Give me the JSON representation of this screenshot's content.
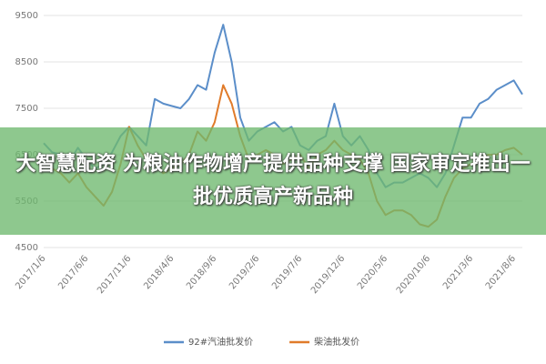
{
  "chart_data": {
    "type": "line",
    "categories": [
      "2017/1/6",
      null,
      null,
      null,
      null,
      "2017/6/6",
      null,
      null,
      null,
      null,
      "2017/11/6",
      null,
      null,
      null,
      null,
      "2018/4/6",
      null,
      null,
      null,
      null,
      "2018/9/6",
      null,
      null,
      null,
      null,
      "2019/2/6",
      null,
      null,
      null,
      null,
      "2019/7/6",
      null,
      null,
      null,
      null,
      "2019/12/6",
      null,
      null,
      null,
      null,
      "2020/5/6",
      null,
      null,
      null,
      null,
      "2020/10/6",
      null,
      null,
      null,
      null,
      "2021/3/6",
      null,
      null,
      null,
      null,
      "2021/8/6",
      null
    ],
    "series": [
      {
        "name": "92#汽油批发价",
        "color": "#5b8ec9",
        "values": [
          6750,
          6550,
          6500,
          6350,
          6650,
          6400,
          6200,
          6300,
          6550,
          6900,
          7100,
          6900,
          6700,
          7700,
          7600,
          7550,
          7500,
          7700,
          8000,
          7900,
          8700,
          9300,
          8500,
          7300,
          6800,
          7000,
          7100,
          7200,
          7000,
          7100,
          6700,
          6600,
          6800,
          6900,
          7600,
          6900,
          6700,
          6900,
          6600,
          6100,
          5800,
          5900,
          5900,
          6000,
          6100,
          6000,
          5800,
          6100,
          6700,
          7300,
          7300,
          7600,
          7700,
          7900,
          8000,
          8100,
          7800
        ]
      },
      {
        "name": "柴油批发价",
        "color": "#e07b2a",
        "values": [
          6500,
          6200,
          6100,
          5900,
          6100,
          5800,
          5600,
          5400,
          5700,
          6300,
          7100,
          6700,
          6400,
          6300,
          6100,
          6200,
          6300,
          6500,
          7000,
          6800,
          7200,
          8000,
          7600,
          6900,
          6400,
          6500,
          6600,
          6500,
          6300,
          6400,
          6500,
          6200,
          6500,
          6600,
          6800,
          6600,
          6500,
          6400,
          6100,
          5500,
          5200,
          5300,
          5300,
          5200,
          5000,
          4950,
          5100,
          5600,
          6000,
          6200,
          6300,
          6400,
          6500,
          6500,
          6600,
          6650,
          6500
        ]
      }
    ],
    "ylim": [
      4500,
      9500
    ],
    "yticks": [
      4500,
      5500,
      6500,
      7500,
      8500,
      9500
    ],
    "grid": true,
    "overlay_text": "大智慧配资 为粮油作物增产提供品种支撑 国家审定推出一批优质高产新品种"
  }
}
